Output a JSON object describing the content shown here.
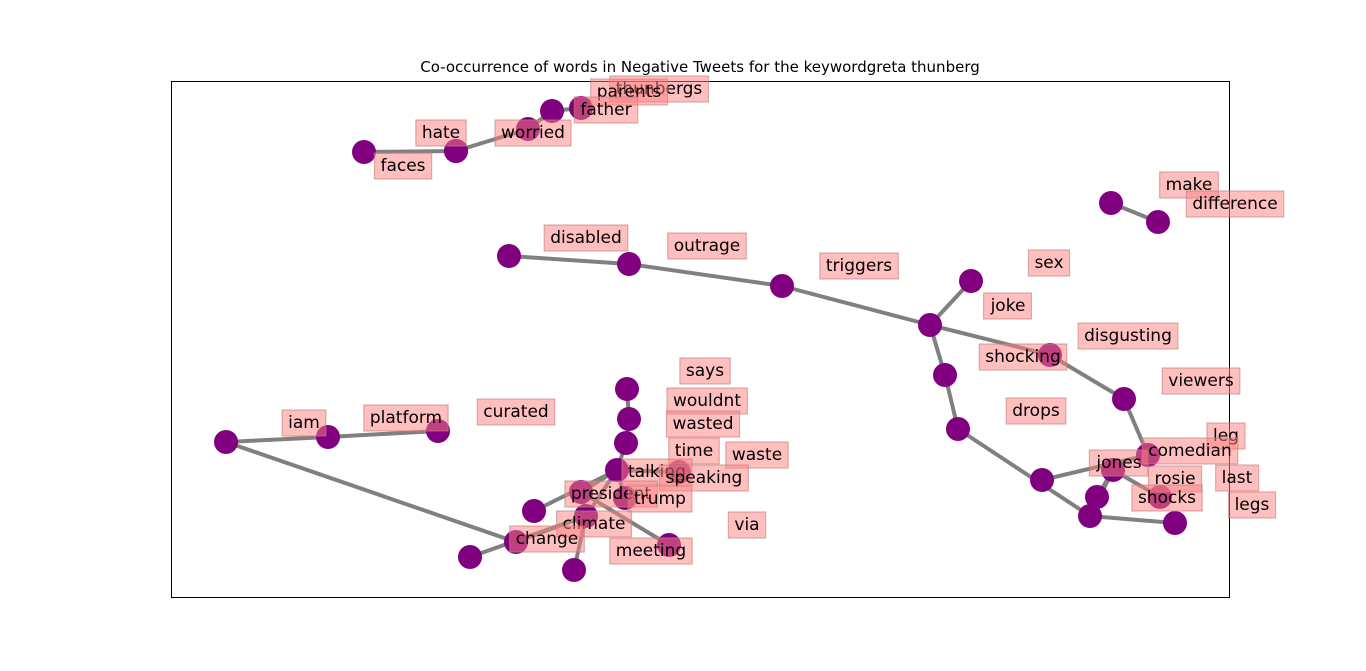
{
  "title": "Co-occurrence of words in Negative Tweets for the keywordgreta thunberg",
  "colors": {
    "node": "#800080",
    "edge": "#808080",
    "label_box": "#ff8080"
  },
  "labels": [
    {
      "id": "thunbergs",
      "text": "thunbergs"
    },
    {
      "id": "parents",
      "text": "parents"
    },
    {
      "id": "father",
      "text": "father"
    },
    {
      "id": "hate",
      "text": "hate"
    },
    {
      "id": "worried",
      "text": "worried"
    },
    {
      "id": "faces",
      "text": "faces"
    },
    {
      "id": "make",
      "text": "make"
    },
    {
      "id": "difference",
      "text": "difference"
    },
    {
      "id": "disabled",
      "text": "disabled"
    },
    {
      "id": "outrage",
      "text": "outrage"
    },
    {
      "id": "triggers",
      "text": "triggers"
    },
    {
      "id": "sex",
      "text": "sex"
    },
    {
      "id": "joke",
      "text": "joke"
    },
    {
      "id": "disgusting",
      "text": "disgusting"
    },
    {
      "id": "shocking",
      "text": "shocking"
    },
    {
      "id": "viewers",
      "text": "viewers"
    },
    {
      "id": "drops",
      "text": "drops"
    },
    {
      "id": "leg",
      "text": "leg"
    },
    {
      "id": "comedian",
      "text": "comedian"
    },
    {
      "id": "jones",
      "text": "jones"
    },
    {
      "id": "rosie",
      "text": "rosie"
    },
    {
      "id": "last",
      "text": "last"
    },
    {
      "id": "shocks",
      "text": "shocks"
    },
    {
      "id": "legs",
      "text": "legs"
    },
    {
      "id": "says",
      "text": "says"
    },
    {
      "id": "wouldnt",
      "text": "wouldnt"
    },
    {
      "id": "wasted",
      "text": "wasted"
    },
    {
      "id": "time",
      "text": "time"
    },
    {
      "id": "waste",
      "text": "waste"
    },
    {
      "id": "talking",
      "text": "talking"
    },
    {
      "id": "speaking",
      "text": "speaking"
    },
    {
      "id": "president",
      "text": "president"
    },
    {
      "id": "trump",
      "text": "trump"
    },
    {
      "id": "climate",
      "text": "climate"
    },
    {
      "id": "via",
      "text": "via"
    },
    {
      "id": "change",
      "text": "change"
    },
    {
      "id": "meeting",
      "text": "meeting"
    },
    {
      "id": "iam",
      "text": "iam"
    },
    {
      "id": "platform",
      "text": "platform"
    },
    {
      "id": "curated",
      "text": "curated"
    }
  ],
  "edges": [
    [
      "faces",
      "hate"
    ],
    [
      "hate",
      "worried"
    ],
    [
      "worried",
      "father"
    ],
    [
      "father",
      "parents"
    ],
    [
      "parents",
      "thunbergs"
    ],
    [
      "make",
      "difference"
    ],
    [
      "disabled",
      "outrage"
    ],
    [
      "outrage",
      "triggers"
    ],
    [
      "triggers",
      "joke"
    ],
    [
      "joke",
      "sex"
    ],
    [
      "joke",
      "shocking"
    ],
    [
      "shocking",
      "disgusting"
    ],
    [
      "disgusting",
      "viewers"
    ],
    [
      "viewers",
      "comedian"
    ],
    [
      "joke",
      "drops"
    ],
    [
      "drops",
      "leg"
    ],
    [
      "leg",
      "rosie"
    ],
    [
      "rosie",
      "last"
    ],
    [
      "rosie",
      "shocks"
    ],
    [
      "rosie",
      "jones"
    ],
    [
      "jones",
      "shocks"
    ],
    [
      "shocks",
      "legs"
    ],
    [
      "says",
      "wouldnt"
    ],
    [
      "wouldnt",
      "wasted"
    ],
    [
      "wasted",
      "talking"
    ],
    [
      "talking",
      "president"
    ],
    [
      "talking",
      "climate"
    ],
    [
      "talking",
      "waste"
    ],
    [
      "talking",
      "speaking"
    ],
    [
      "talking",
      "time"
    ],
    [
      "president",
      "trump"
    ],
    [
      "president",
      "climate"
    ],
    [
      "climate",
      "change"
    ],
    [
      "climate",
      "meeting"
    ],
    [
      "climate",
      "via"
    ],
    [
      "change",
      "curated"
    ],
    [
      "iam",
      "platform"
    ],
    [
      "iam",
      "curated"
    ]
  ]
}
